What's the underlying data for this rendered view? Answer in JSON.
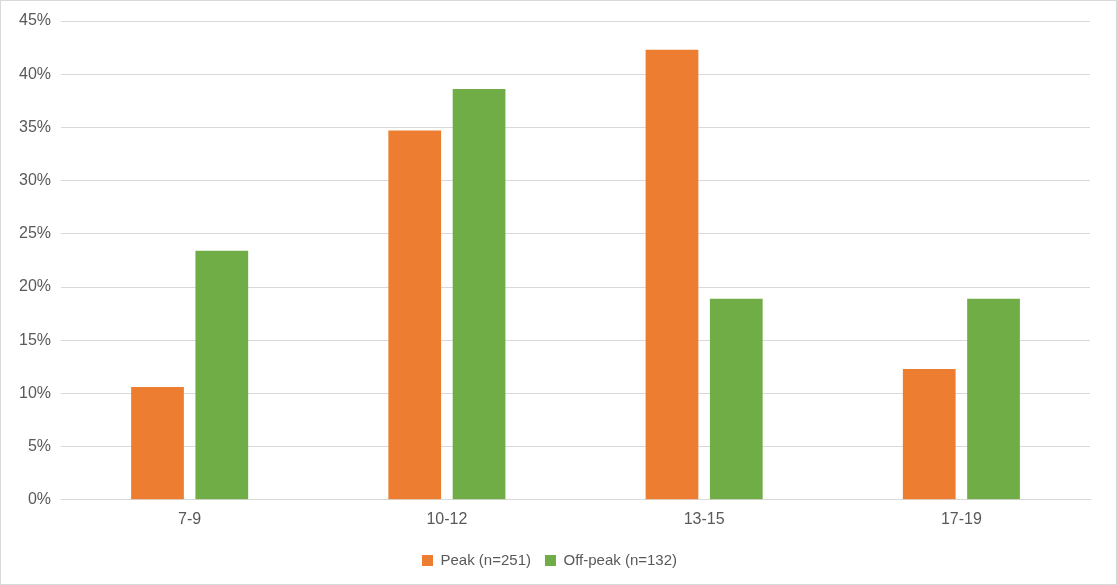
{
  "chart_data": {
    "type": "bar",
    "categories": [
      "7-9",
      "10-12",
      "13-15",
      "17-19"
    ],
    "series": [
      {
        "name": "Peak (n=251)",
        "color": "#ed7d31",
        "values": [
          10.6,
          34.7,
          42.3,
          12.3
        ]
      },
      {
        "name": "Off-peak (n=132)",
        "color": "#70ad47",
        "values": [
          23.4,
          38.6,
          18.9,
          18.9
        ]
      }
    ],
    "ylim": [
      0,
      45
    ],
    "yticks": [
      {
        "value": 0,
        "label": "0%"
      },
      {
        "value": 5,
        "label": "5%"
      },
      {
        "value": 10,
        "label": "10%"
      },
      {
        "value": 15,
        "label": "15%"
      },
      {
        "value": 20,
        "label": "20%"
      },
      {
        "value": 25,
        "label": "25%"
      },
      {
        "value": 30,
        "label": "30%"
      },
      {
        "value": 35,
        "label": "35%"
      },
      {
        "value": 40,
        "label": "40%"
      },
      {
        "value": 45,
        "label": "45%"
      }
    ],
    "grid": "y",
    "legend": "bottom"
  }
}
